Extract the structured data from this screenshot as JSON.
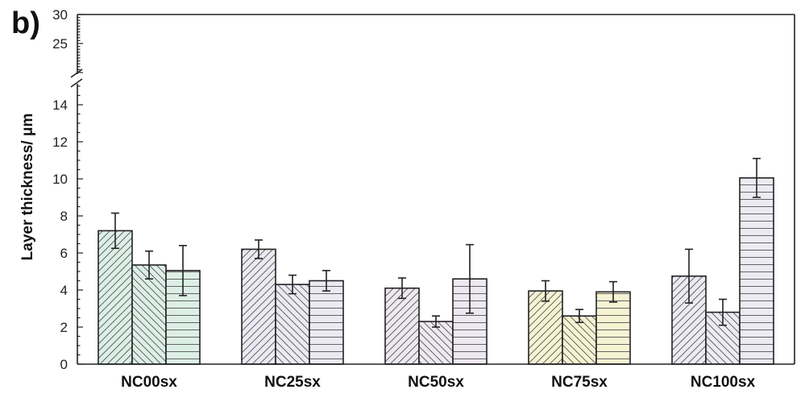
{
  "panel_label": "b)",
  "chart_data": {
    "type": "bar",
    "title": "",
    "xlabel": "",
    "ylabel": "Layer thickness/ μm",
    "categories": [
      "NC00sx",
      "NC25sx",
      "NC50sx",
      "NC75sx",
      "NC100sx"
    ],
    "series": [
      {
        "values": [
          7.2,
          6.2,
          4.1,
          3.95,
          4.75
        ],
        "errors": [
          0.95,
          0.5,
          0.55,
          0.55,
          1.45
        ],
        "pattern": "diagonal-right"
      },
      {
        "values": [
          5.35,
          4.3,
          2.3,
          2.6,
          2.8
        ],
        "errors": [
          0.75,
          0.5,
          0.3,
          0.35,
          0.7
        ],
        "pattern": "diagonal-left"
      },
      {
        "values": [
          5.05,
          4.5,
          4.6,
          3.9,
          10.05
        ],
        "errors": [
          1.35,
          0.55,
          1.85,
          0.55,
          1.05
        ],
        "pattern": "horizontal"
      }
    ],
    "category_tints": [
      "#dcefe6",
      "#ebe9f2",
      "#eee8f0",
      "#f6f3d2",
      "#eceaf2"
    ],
    "ylim": [
      0,
      30
    ],
    "axis_break": [
      15,
      20
    ],
    "yticks_lower": [
      "0",
      "2",
      "4",
      "6",
      "8",
      "10",
      "12",
      "14"
    ],
    "yticks_upper": [
      "25",
      "30"
    ],
    "grid": false,
    "legend": "none"
  }
}
